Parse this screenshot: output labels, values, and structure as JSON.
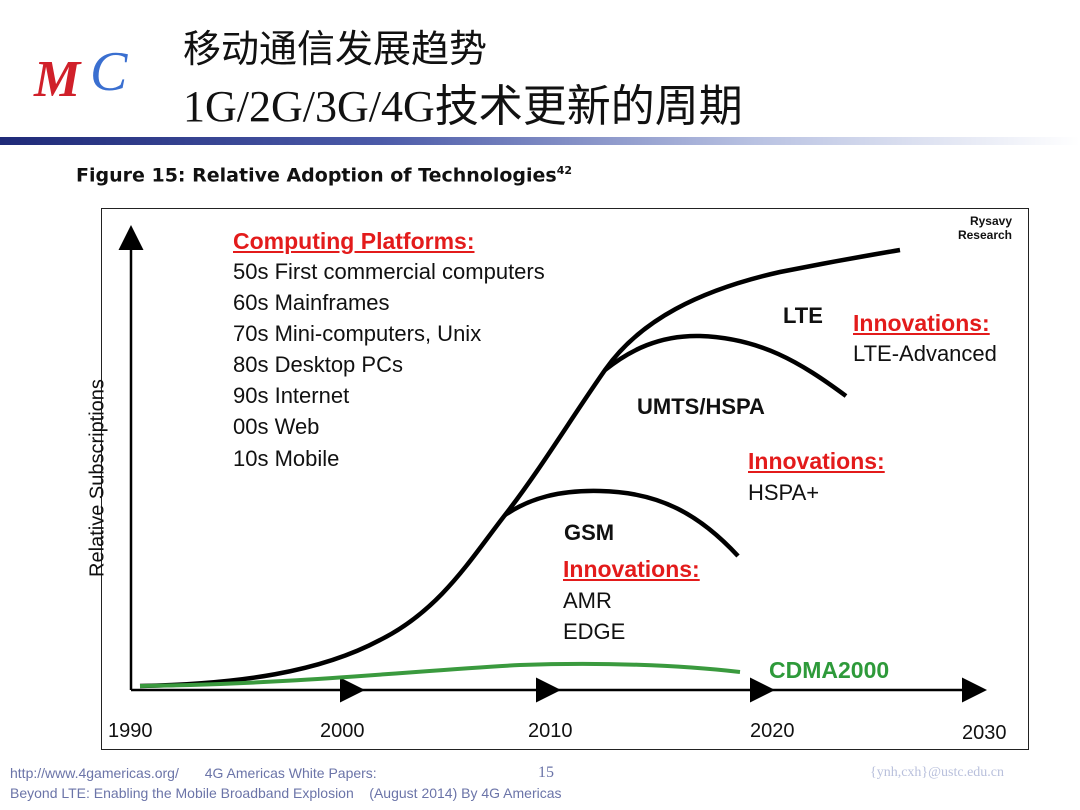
{
  "header": {
    "logo_text": "MC",
    "title_line1": "移动通信发展趋势",
    "title_line2": "1G/2G/3G/4G技术更新的周期"
  },
  "figure": {
    "caption": "Figure 15: Relative Adoption of Technologies",
    "caption_sup": "42",
    "source_mark_line1": "Rysavy",
    "source_mark_line2": "Research",
    "y_axis_label": "Relative Subscriptions",
    "x_ticks": [
      "1990",
      "2000",
      "2010",
      "2020",
      "2030"
    ],
    "computing_platforms": {
      "heading": "Computing Platforms:",
      "items": [
        "50s First commercial computers",
        "60s Mainframes",
        "70s Mini-computers, Unix",
        "80s Desktop PCs",
        "90s Internet",
        "00s Web",
        "10s Mobile"
      ]
    },
    "technologies": {
      "lte": "LTE",
      "umts": "UMTS/HSPA",
      "gsm": "GSM",
      "cdma": "CDMA2000"
    },
    "innovations": {
      "lte": {
        "heading": "Innovations:",
        "items": [
          "LTE-Advanced"
        ]
      },
      "umts": {
        "heading": "Innovations:",
        "items": [
          "HSPA+"
        ]
      },
      "gsm": {
        "heading": "Innovations:",
        "items": [
          "AMR",
          "EDGE"
        ]
      }
    },
    "colors": {
      "curve": "#000000",
      "cdma_curve": "#3a9a3e",
      "innovation_heading": "#e31b1b"
    }
  },
  "footer": {
    "url": "http://www.4gamericas.org/",
    "publisher": "4G Americas White Papers:",
    "page_number": "15",
    "line2": "Beyond LTE: Enabling the Mobile Broadband Explosion    (August 2014) By 4G Americas",
    "email": "{ynh,cxh}@ustc.edu.cn"
  }
}
